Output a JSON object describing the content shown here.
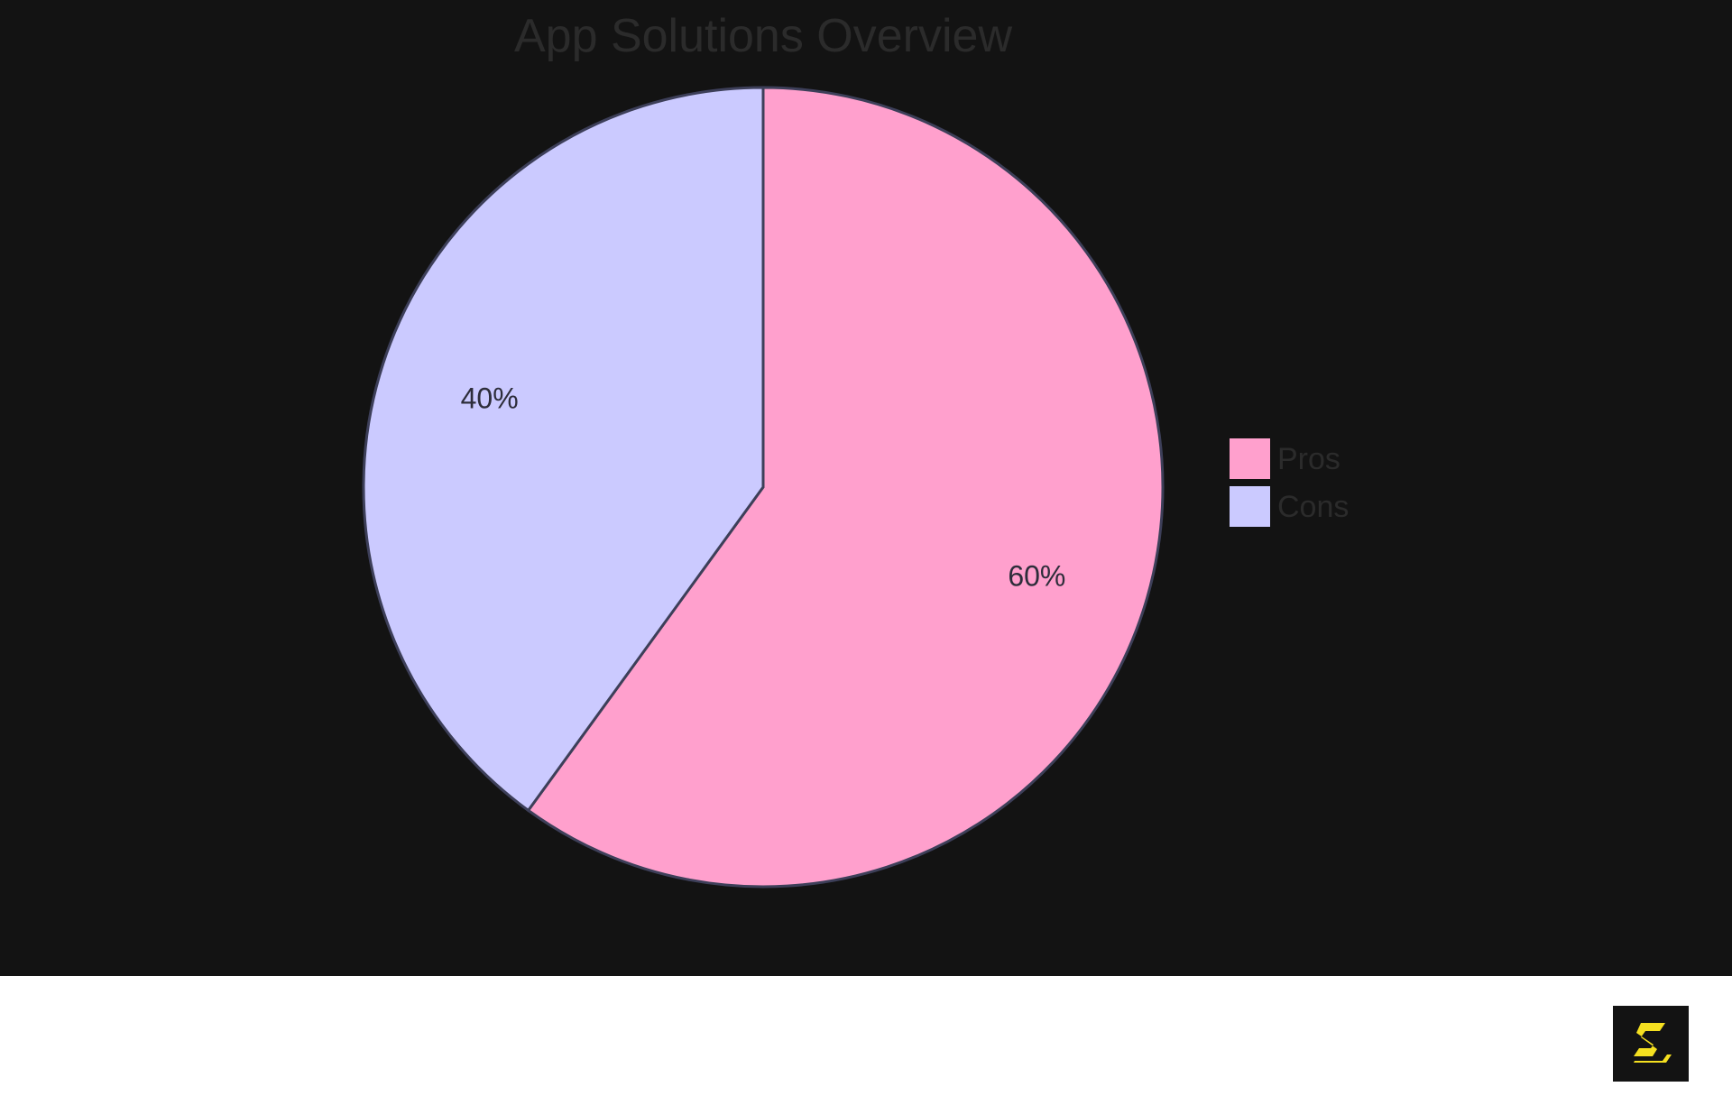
{
  "chart_data": {
    "type": "pie",
    "title": "App Solutions Overview",
    "slices": [
      {
        "label": "Pros",
        "value": 60,
        "display": "60%",
        "color": "#ffa0cd"
      },
      {
        "label": "Cons",
        "value": 40,
        "display": "40%",
        "color": "#cbcaff"
      }
    ],
    "legend_position": "right",
    "start_angle": "top (12 o'clock), clockwise"
  },
  "colors": {
    "panel_background": "#131313",
    "title_text": "#2b2b2b",
    "slice_stroke": "#3d3f59",
    "slice_label_text": "#2d2d3a",
    "legend_text": "#2b2b2b",
    "footer_background": "#ffffff",
    "logo_background": "#131313",
    "logo_accent": "#f5e020"
  },
  "footer": {
    "logo_icon": "s-logo-icon"
  }
}
